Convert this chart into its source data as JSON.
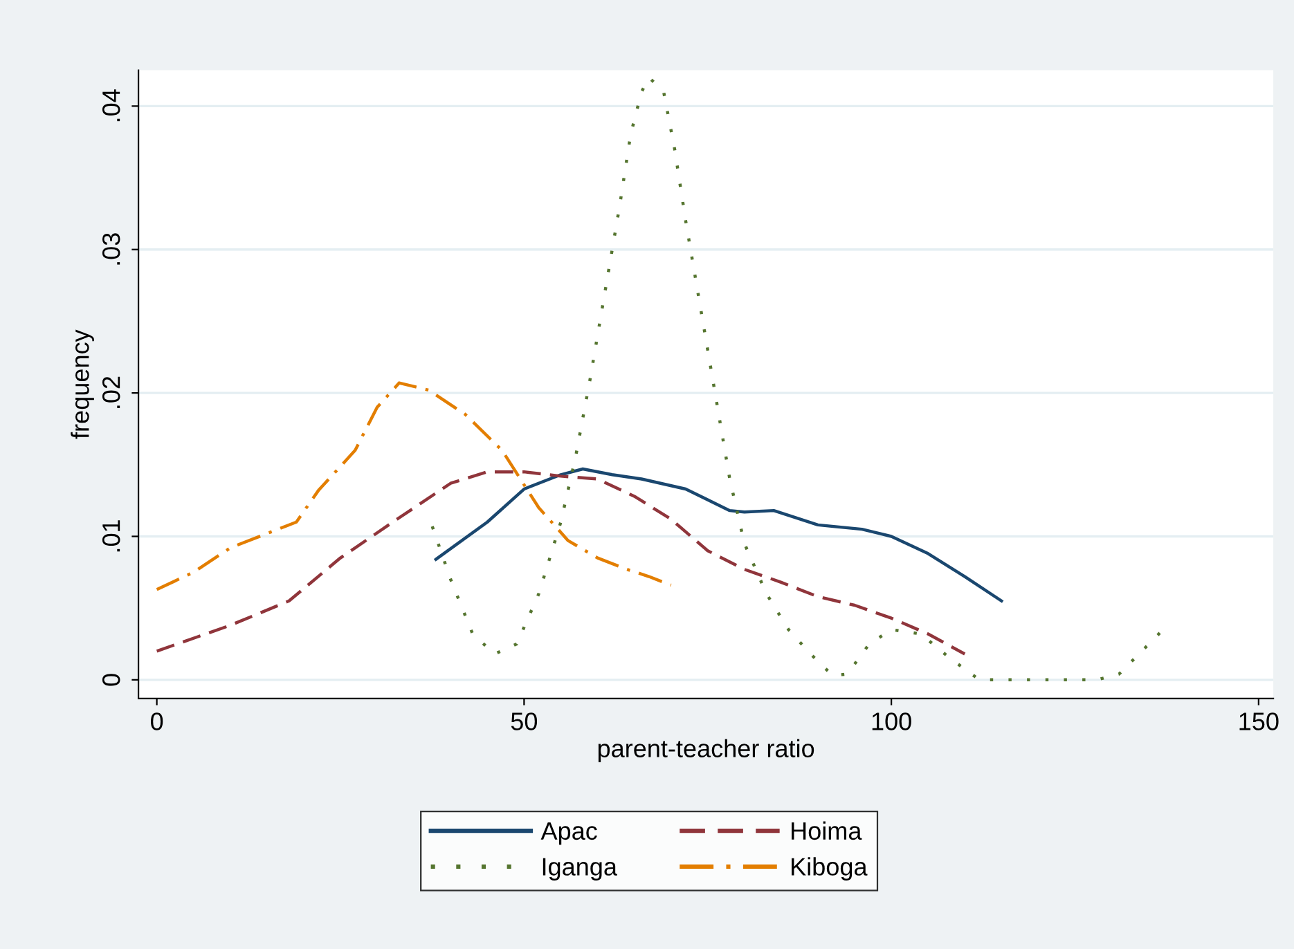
{
  "chart_data": {
    "type": "line",
    "xlabel": "parent-teacher ratio",
    "ylabel": "frequency",
    "xlim": [
      -2.5,
      152
    ],
    "xticks": [
      0,
      50,
      100,
      150
    ],
    "ylim": [
      -0.0013,
      0.0425
    ],
    "yticks": [
      {
        "value": 0,
        "label": "0"
      },
      {
        "value": 0.01,
        "label": ".01"
      },
      {
        "value": 0.02,
        "label": ".02"
      },
      {
        "value": 0.03,
        "label": ".03"
      },
      {
        "value": 0.04,
        "label": ".04"
      }
    ],
    "grid": "y",
    "legend": "bottom",
    "marker": "none",
    "series": [
      {
        "name": "Apac",
        "color": "#1a476f",
        "line_style": "solid",
        "x": [
          38,
          45,
          50,
          55,
          58,
          62,
          66,
          72,
          78,
          80,
          84,
          90,
          96,
          100,
          105,
          110,
          115
        ],
        "values": [
          0.0084,
          0.011,
          0.0133,
          0.0143,
          0.0147,
          0.0143,
          0.014,
          0.0133,
          0.0118,
          0.0117,
          0.0118,
          0.0108,
          0.0105,
          0.01,
          0.0088,
          0.0072,
          0.0055
        ]
      },
      {
        "name": "Hoima",
        "color": "#90353b",
        "line_style": "dashed",
        "x": [
          0,
          10,
          18,
          25,
          33,
          40,
          45,
          50,
          55,
          60,
          65,
          70,
          75,
          80,
          85,
          90,
          95,
          100,
          105,
          110
        ],
        "values": [
          0.002,
          0.0038,
          0.0055,
          0.0085,
          0.0113,
          0.0137,
          0.0145,
          0.0145,
          0.0142,
          0.014,
          0.0128,
          0.0112,
          0.009,
          0.0077,
          0.0068,
          0.0058,
          0.0052,
          0.0043,
          0.0032,
          0.0018
        ]
      },
      {
        "name": "Iganga",
        "color": "#55752f",
        "line_style": "dotted",
        "x": [
          37.5,
          40,
          43,
          46,
          49,
          52,
          55,
          57,
          59,
          61,
          63,
          64.5,
          66,
          67,
          69,
          70.5,
          72,
          74,
          76,
          78,
          80,
          83,
          86,
          89,
          92,
          94,
          97,
          100,
          104,
          108,
          112,
          120,
          128,
          131,
          137
        ],
        "values": [
          0.0107,
          0.007,
          0.0032,
          0.0018,
          0.0025,
          0.006,
          0.011,
          0.0155,
          0.021,
          0.027,
          0.033,
          0.038,
          0.041,
          0.042,
          0.041,
          0.037,
          0.032,
          0.026,
          0.02,
          0.014,
          0.0095,
          0.006,
          0.0035,
          0.0018,
          0.0003,
          0.0004,
          0.0025,
          0.0035,
          0.0032,
          0.0015,
          0,
          0,
          0,
          0.0004,
          0.0035
        ]
      },
      {
        "name": "Kiboga",
        "color": "#e37e00",
        "line_style": "dashdot",
        "x": [
          0,
          5,
          10,
          15,
          19,
          22,
          27,
          30,
          33,
          37,
          42,
          47,
          52,
          56,
          60,
          64,
          67,
          70
        ],
        "values": [
          0.0063,
          0.0075,
          0.0092,
          0.0102,
          0.011,
          0.0132,
          0.016,
          0.019,
          0.0207,
          0.0202,
          0.0185,
          0.016,
          0.012,
          0.0097,
          0.0085,
          0.0077,
          0.0072,
          0.0066
        ]
      }
    ]
  }
}
